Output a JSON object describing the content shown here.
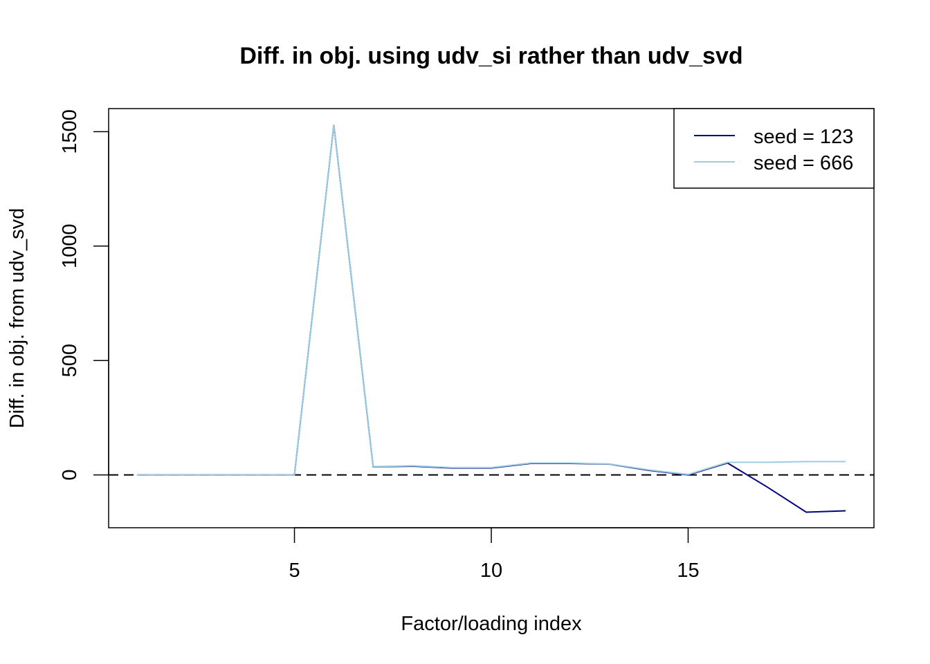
{
  "chart_data": {
    "type": "line",
    "title": "Diff. in obj. using udv_si rather than udv_svd",
    "xlabel": "Factor/loading index",
    "ylabel": "Diff. in obj. from udv_svd",
    "xlim": [
      0.28,
      19.72
    ],
    "ylim": [
      -231,
      1601
    ],
    "xticks": [
      5,
      10,
      15
    ],
    "yticks": [
      0,
      500,
      1000,
      1500
    ],
    "grid": false,
    "legend_position": "top-right",
    "reference_line": {
      "y": 0,
      "style": "dashed",
      "color": "#000000"
    },
    "x": [
      1,
      2,
      3,
      4,
      5,
      6,
      7,
      8,
      9,
      10,
      11,
      12,
      13,
      14,
      15,
      16,
      17,
      18,
      19
    ],
    "series": [
      {
        "name": "seed = 123",
        "color": "#000080",
        "values": [
          0,
          0,
          0,
          0,
          0,
          1530,
          35,
          38,
          30,
          30,
          50,
          50,
          47,
          20,
          0,
          52,
          -52,
          -163,
          -157
        ]
      },
      {
        "name": "seed = 666",
        "color": "#9ACDE0",
        "values": [
          0,
          0,
          0,
          0,
          0,
          1530,
          36,
          40,
          32,
          32,
          52,
          52,
          48,
          22,
          2,
          55,
          55,
          58,
          58
        ]
      }
    ]
  }
}
